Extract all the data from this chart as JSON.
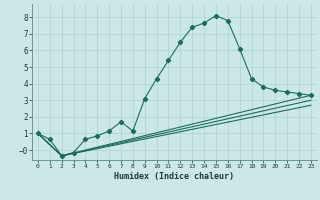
{
  "bg_color": "#cce8e6",
  "grid_color": "#aad4d0",
  "line_color": "#1e6b5e",
  "xlabel": "Humidex (Indice chaleur)",
  "ylim": [
    -0.6,
    8.8
  ],
  "xlim": [
    -0.5,
    23.5
  ],
  "yticks": [
    0,
    1,
    2,
    3,
    4,
    5,
    6,
    7,
    8
  ],
  "ytick_labels": [
    "−0",
    "1",
    "2",
    "3",
    "4",
    "5",
    "6",
    "7",
    "8"
  ],
  "xticks": [
    0,
    1,
    2,
    3,
    4,
    5,
    6,
    7,
    8,
    9,
    10,
    11,
    12,
    13,
    14,
    15,
    16,
    17,
    18,
    19,
    20,
    21,
    22,
    23
  ],
  "series1_x": [
    0,
    1,
    2,
    3,
    4,
    5,
    6,
    7,
    8,
    9,
    10,
    11,
    12,
    13,
    14,
    15,
    16,
    17,
    18,
    19,
    20,
    21,
    22,
    23
  ],
  "series1_y": [
    1.0,
    0.65,
    -0.35,
    -0.15,
    0.65,
    0.85,
    1.15,
    1.7,
    1.15,
    3.1,
    4.3,
    5.4,
    6.5,
    7.4,
    7.65,
    8.1,
    7.8,
    6.1,
    4.3,
    3.8,
    3.6,
    3.5,
    3.4,
    3.3
  ],
  "series2_x": [
    0,
    2,
    23
  ],
  "series2_y": [
    1.0,
    -0.35,
    3.3
  ],
  "series3_x": [
    0,
    2,
    23
  ],
  "series3_y": [
    1.0,
    -0.35,
    2.7
  ],
  "series4_x": [
    0,
    2,
    23
  ],
  "series4_y": [
    1.0,
    -0.35,
    3.0
  ],
  "axis_bottom_color": "#2a5a50",
  "tick_color": "#1a3a35"
}
